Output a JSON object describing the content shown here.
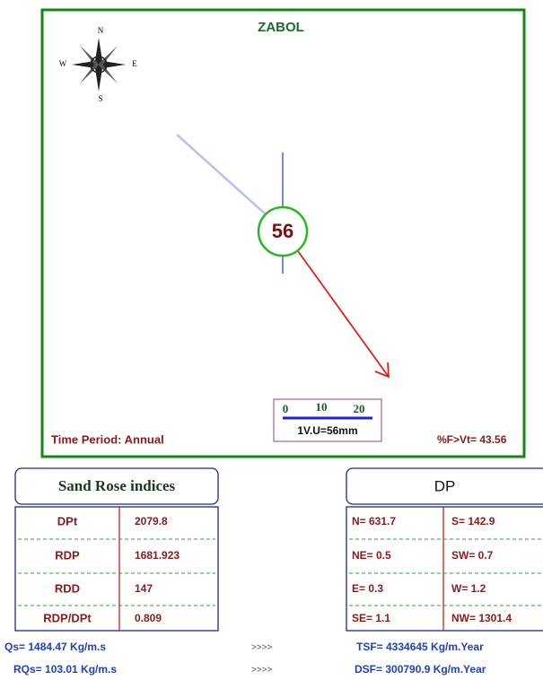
{
  "title": "ZABOL",
  "compass": {
    "n": "N",
    "e": "E",
    "s": "S",
    "w": "W"
  },
  "center_label": "56",
  "scale": {
    "ticks": [
      "0",
      "10",
      "20"
    ],
    "unit": "1V.U=56mm"
  },
  "time_period": "Time Period: Annual",
  "percent_f": "%F>Vt= 43.56",
  "indices": {
    "title": "Sand Rose indices",
    "rows": [
      [
        "DPt",
        "2079.8"
      ],
      [
        "RDP",
        "1681.923"
      ],
      [
        "RDD",
        "147"
      ],
      [
        "RDP/DPt",
        "0.809"
      ]
    ]
  },
  "dp": {
    "title": "DP",
    "rows": [
      [
        "N= 631.7",
        "S= 142.9"
      ],
      [
        "NE= 0.5",
        "SW=  0.7"
      ],
      [
        "E= 0.3",
        "W= 1.2"
      ],
      [
        "SE= 1.1",
        "NW= 1301.4"
      ]
    ]
  },
  "footer": [
    [
      "Qs= 1484.47 Kg/m.s",
      ">>>>",
      "TSF= 4334645 Kg/m.Year"
    ],
    [
      "RQs= 103.01 Kg/m.s",
      ">>>>",
      "DSF= 300790.9 Kg/m.Year"
    ]
  ]
}
